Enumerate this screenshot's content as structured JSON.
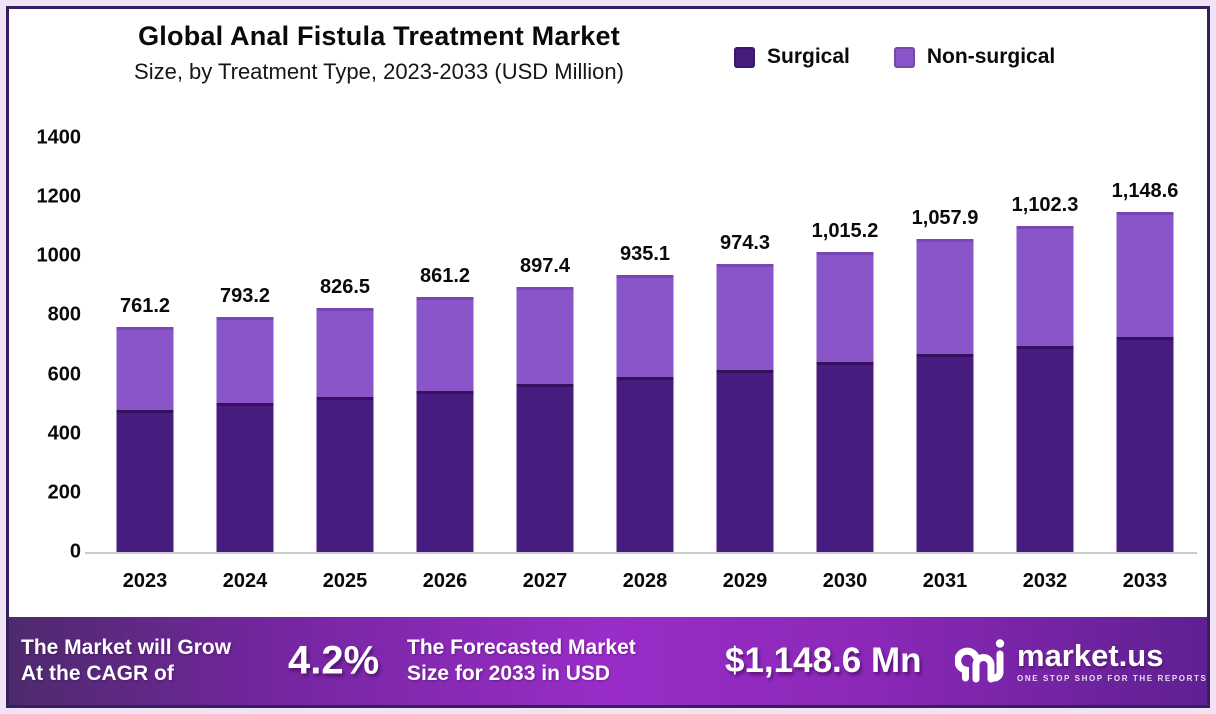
{
  "chart_data": {
    "type": "bar",
    "stacked": true,
    "title": "Global Anal Fistula Treatment Market",
    "subtitle": "Size, by Treatment Type, 2023-2033 (USD Million)",
    "categories": [
      "2023",
      "2024",
      "2025",
      "2026",
      "2027",
      "2028",
      "2029",
      "2030",
      "2031",
      "2032",
      "2033"
    ],
    "totals": [
      761.2,
      793.2,
      826.5,
      861.2,
      897.4,
      935.1,
      974.3,
      1015.2,
      1057.9,
      1102.3,
      1148.6
    ],
    "total_labels": [
      "761.2",
      "793.2",
      "826.5",
      "861.2",
      "897.4",
      "935.1",
      "974.3",
      "1,015.2",
      "1,057.9",
      "1,102.3",
      "1,148.6"
    ],
    "series": [
      {
        "name": "Surgical",
        "color": "#471c7f",
        "estimated": true,
        "values": [
          480,
          503,
          525,
          546,
          569,
          592,
          616,
          642,
          669,
          697,
          726
        ]
      },
      {
        "name": "Non-surgical",
        "color": "#8a55c8",
        "estimated": true,
        "values": [
          281.2,
          290.2,
          301.5,
          315.2,
          328.4,
          343.1,
          358.3,
          373.2,
          388.9,
          405.3,
          422.6
        ]
      }
    ],
    "y_axis": {
      "min": 0,
      "max": 1400,
      "step": 200,
      "ticks": [
        "0",
        "200",
        "400",
        "600",
        "800",
        "1000",
        "1200",
        "1400"
      ]
    },
    "xlabel": "",
    "ylabel": "",
    "grid": false,
    "legend_position": "top-right"
  },
  "legend": {
    "items": [
      {
        "label": "Surgical",
        "color": "#471c7f"
      },
      {
        "label": "Non-surgical",
        "color": "#8a55c8"
      }
    ]
  },
  "banner": {
    "cagr_label_line1": "The Market will Grow",
    "cagr_label_line2": "At the CAGR of",
    "cagr_value": "4.2%",
    "forecast_label_line1": "The Forecasted Market",
    "forecast_label_line2": "Size for 2033 in USD",
    "forecast_value": "$1,148.6 Mn",
    "brand": "market.us",
    "brand_tagline": "ONE STOP SHOP FOR THE REPORTS"
  },
  "colors": {
    "surgical_bar": "#471c7f",
    "non_surgical_bar": "#8a55c8",
    "frame_border": "#35205f",
    "page_margin": "#f2e2f5",
    "banner_gradient_left": "#4e2a6d",
    "banner_gradient_middle": "#9a2dc8",
    "banner_gradient_right": "#5f2091"
  }
}
